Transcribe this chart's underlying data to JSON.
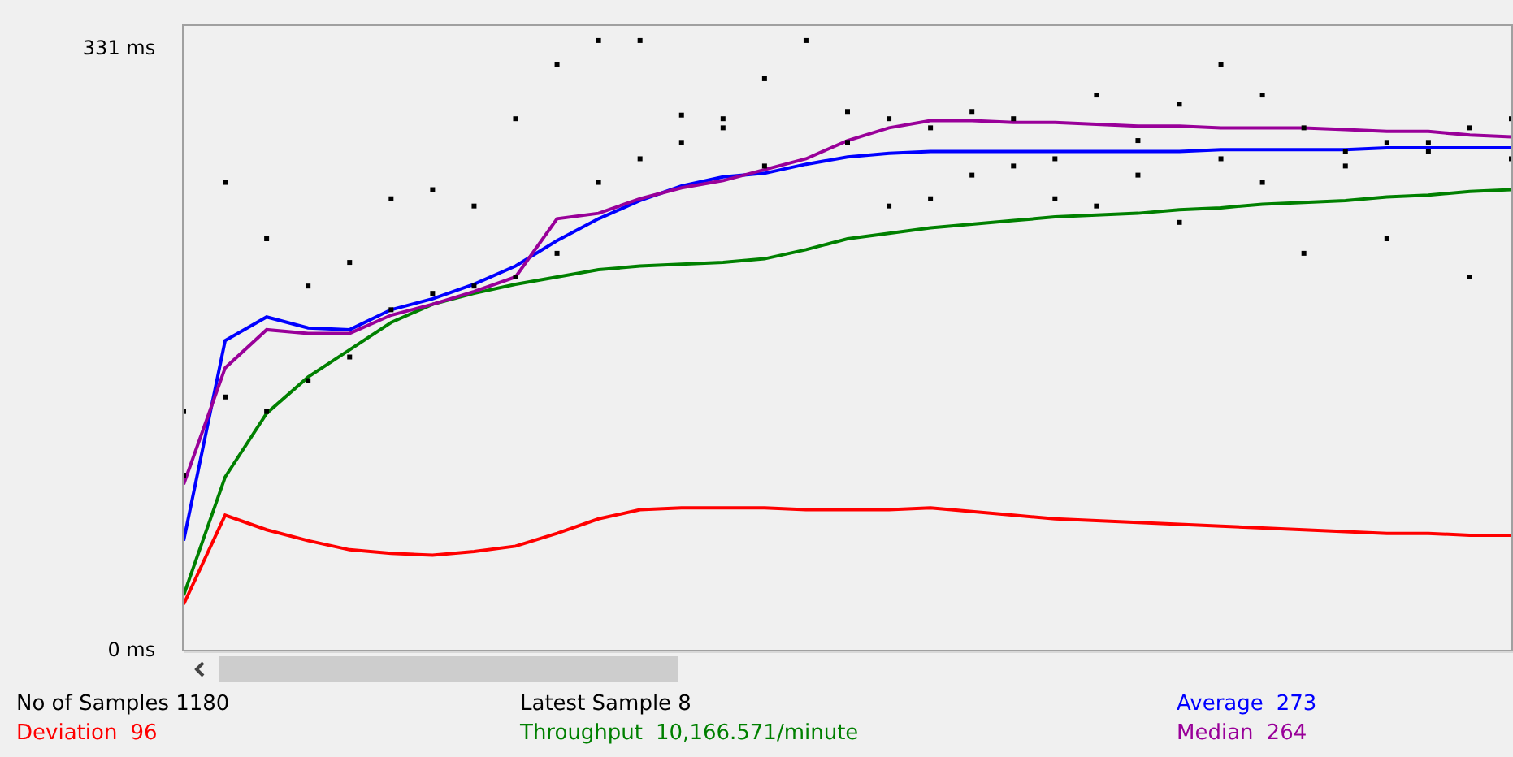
{
  "chart_data": {
    "type": "line",
    "categories": [
      null,
      null,
      null,
      null,
      null,
      null,
      null,
      null,
      null,
      null,
      null,
      null,
      null,
      null,
      null,
      null,
      null,
      null,
      null,
      null,
      null,
      null,
      null,
      null,
      null,
      null,
      null,
      null,
      null,
      null,
      null,
      null,
      null
    ],
    "series": [
      {
        "name": "Deviation",
        "color": "#ff0000",
        "values": [
          25,
          74,
          66,
          60,
          55,
          53,
          52,
          54,
          57,
          64,
          72,
          77,
          78,
          78,
          78,
          77,
          77,
          77,
          78,
          76,
          74,
          72,
          71,
          70,
          69,
          68,
          67,
          66,
          65,
          64,
          64,
          63,
          63
        ]
      },
      {
        "name": "Throughput",
        "color": "#008000",
        "values": [
          30,
          95,
          130,
          150,
          165,
          180,
          190,
          196,
          201,
          205,
          209,
          211,
          212,
          213,
          215,
          220,
          226,
          229,
          232,
          234,
          236,
          238,
          239,
          240,
          242,
          243,
          245,
          246,
          247,
          249,
          250,
          252,
          253
        ]
      },
      {
        "name": "Average",
        "color": "#0000ff",
        "values": [
          60,
          170,
          183,
          177,
          176,
          187,
          193,
          201,
          211,
          225,
          237,
          247,
          255,
          260,
          262,
          267,
          271,
          273,
          274,
          274,
          274,
          274,
          274,
          274,
          274,
          275,
          275,
          275,
          275,
          276,
          276,
          276,
          276
        ]
      },
      {
        "name": "Median",
        "color": "#990099",
        "values": [
          91,
          155,
          176,
          174,
          174,
          184,
          190,
          197,
          205,
          237,
          240,
          248,
          254,
          258,
          264,
          270,
          280,
          287,
          291,
          291,
          290,
          290,
          289,
          288,
          288,
          287,
          287,
          287,
          286,
          285,
          285,
          283,
          282
        ]
      },
      {
        "type": "scatter",
        "marker": "square",
        "color": "#000000",
        "values": [
          96,
          257,
          226,
          200,
          213,
          248,
          253,
          244,
          292,
          322,
          335,
          335,
          294,
          292,
          314,
          335,
          296,
          292,
          287,
          296,
          292,
          270,
          305,
          280,
          300,
          322,
          305,
          287,
          274,
          279,
          279,
          287,
          292
        ]
      },
      {
        "type": "scatter",
        "marker": "square",
        "color": "#000000",
        "values": [
          131,
          139,
          131,
          148,
          161,
          187,
          196,
          200,
          205,
          218,
          257,
          270,
          279,
          287,
          266,
          null,
          279,
          244,
          248,
          261,
          266,
          248,
          244,
          261,
          235,
          270,
          257,
          218,
          266,
          226,
          274,
          205,
          270
        ]
      }
    ],
    "ylim": [
      0,
      343
    ],
    "yticks": [
      {
        "value": 0,
        "label": "0 ms"
      },
      {
        "value": 331,
        "label": "331 ms"
      }
    ],
    "tick_labels": "y",
    "grid": false,
    "legend": "bottom",
    "line_style": "solid",
    "annotations": [
      "No of Samples 1180",
      "Latest Sample 8",
      "273",
      "96",
      "10,166.571/minute",
      "264"
    ]
  }
}
